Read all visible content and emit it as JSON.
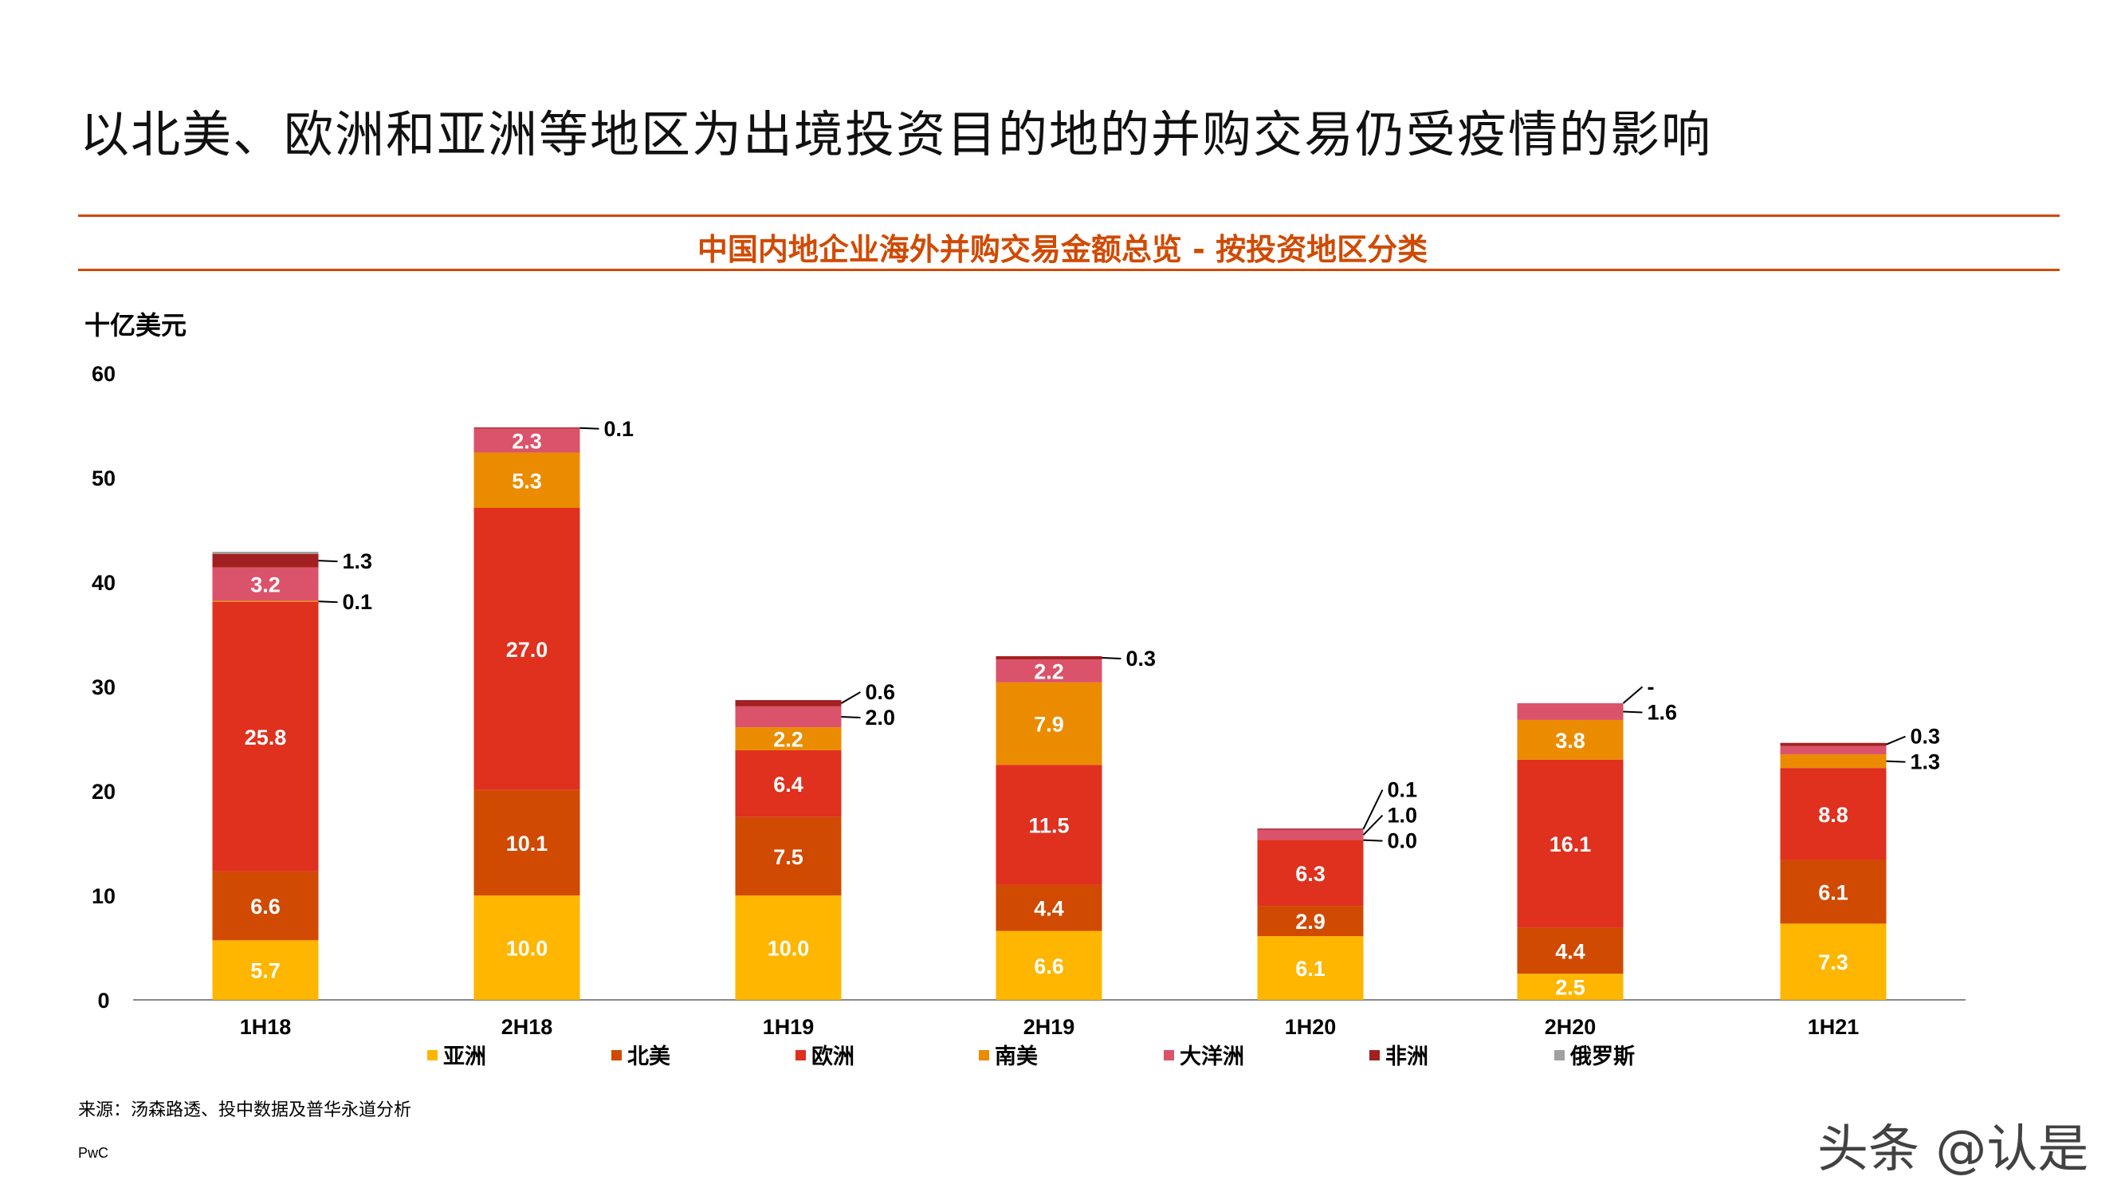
{
  "title": "以北美、欧洲和亚洲等地区为出境投资目的地的并购交易仍受疫情的影响",
  "chart_data": {
    "type": "bar",
    "stacked": true,
    "title": "中国内地企业海外并购交易金额总览 - 按投资地区分类",
    "ylabel": "十亿美元",
    "xlabel": "",
    "ylim": [
      0,
      60
    ],
    "yticks": [
      0,
      10,
      20,
      30,
      40,
      50,
      60
    ],
    "grid": false,
    "legend_position": "bottom",
    "categories": [
      "1H18",
      "2H18",
      "1H19",
      "2H19",
      "1H20",
      "2H20",
      "1H21"
    ],
    "series": [
      {
        "name": "亚洲",
        "color": "#ffb600",
        "values": [
          5.7,
          10.0,
          10.0,
          6.6,
          6.1,
          2.5,
          7.3
        ],
        "labels": [
          "5.7",
          "10.0",
          "10.0",
          "6.6",
          "6.1",
          "2.5",
          "7.3"
        ]
      },
      {
        "name": "北美",
        "color": "#d04a02",
        "values": [
          6.6,
          10.1,
          7.5,
          4.4,
          2.9,
          4.4,
          6.1
        ],
        "labels": [
          "6.6",
          "10.1",
          "7.5",
          "4.4",
          "2.9",
          "4.4",
          "6.1"
        ]
      },
      {
        "name": "欧洲",
        "color": "#e0301e",
        "values": [
          25.8,
          27.0,
          6.4,
          11.5,
          6.3,
          16.1,
          8.8
        ],
        "labels": [
          "25.8",
          "27.0",
          "6.4",
          "11.5",
          "6.3",
          "16.1",
          "8.8"
        ]
      },
      {
        "name": "南美",
        "color": "#eb8c00",
        "values": [
          0.1,
          5.3,
          2.2,
          7.9,
          0.0,
          3.8,
          1.3
        ],
        "labels": [
          "0.1",
          "5.3",
          "2.2",
          "7.9",
          "0.0",
          "3.8",
          "1.3"
        ]
      },
      {
        "name": "大洋洲",
        "color": "#db536a",
        "values": [
          3.2,
          2.3,
          2.0,
          2.2,
          1.0,
          1.6,
          0.8
        ],
        "labels": [
          "3.2",
          "2.3",
          "2.0",
          "2.2",
          "1.0",
          "1.6",
          ""
        ]
      },
      {
        "name": "非洲",
        "color": "#a32020",
        "values": [
          1.3,
          0.1,
          0.6,
          0.3,
          0.1,
          0,
          0.3
        ],
        "labels": [
          "1.3",
          "0.1",
          "0.6",
          "0.3",
          "0.1",
          "-",
          "0.3"
        ]
      },
      {
        "name": "俄罗斯",
        "color": "#a0a0a0",
        "values": [
          0.2,
          0,
          0,
          0,
          0,
          0,
          0
        ],
        "labels": [
          "",
          "",
          "",
          "",
          "",
          "",
          ""
        ]
      }
    ]
  },
  "source": "来源：汤森路透、投中数据及普华永道分析",
  "brand": "PwC",
  "watermark": "头条 @认是"
}
